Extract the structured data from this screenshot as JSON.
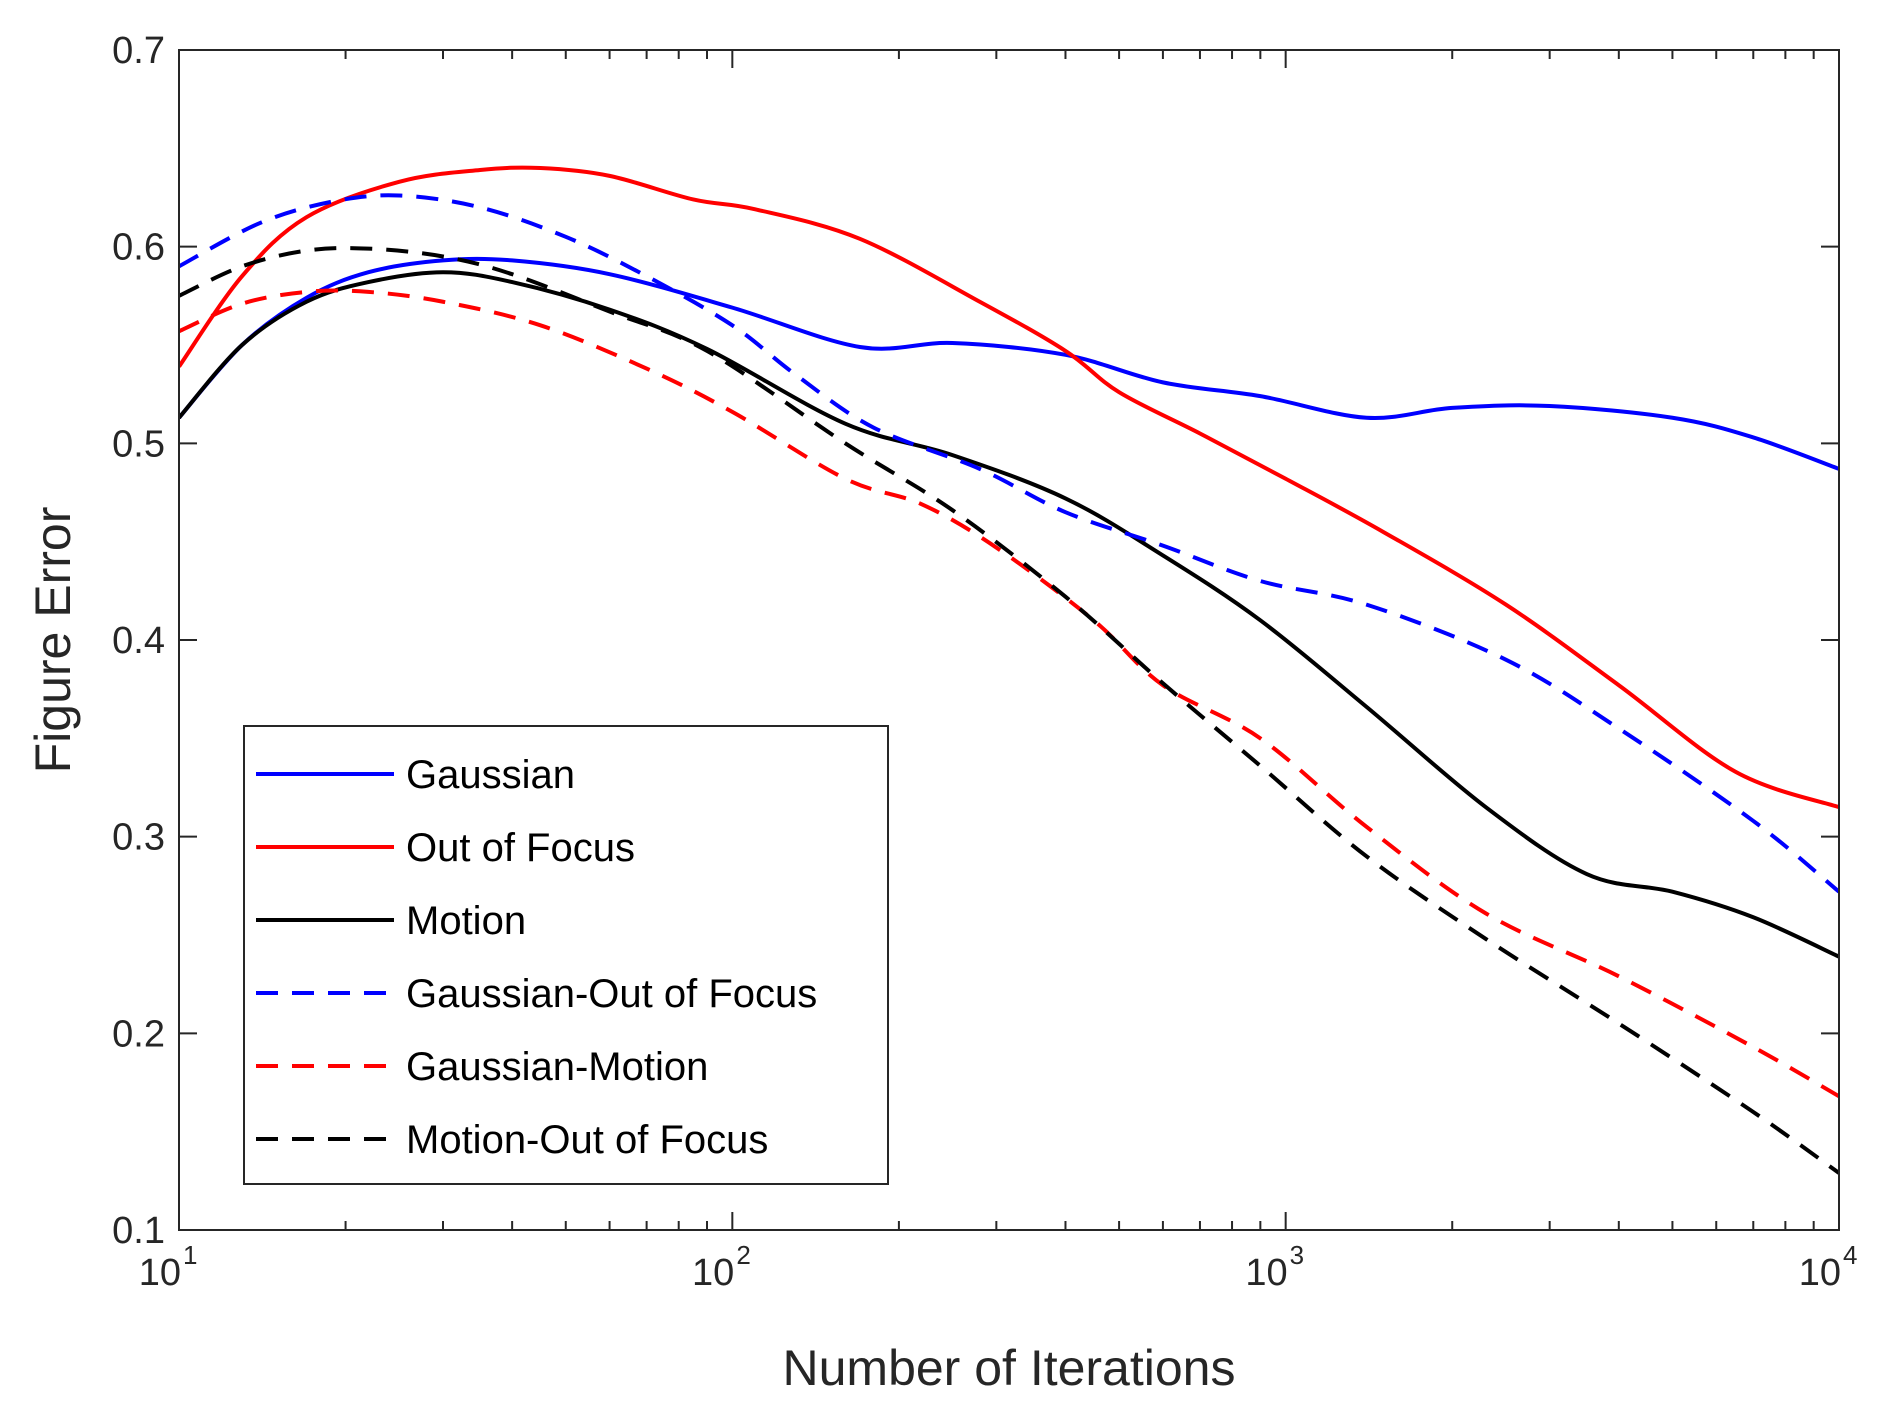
{
  "chart_data": {
    "type": "line",
    "title": "",
    "xlabel": "Number of Iterations",
    "ylabel": "Figure Error",
    "xscale": "log",
    "xlim": [
      10,
      10000
    ],
    "ylim": [
      0.1,
      0.7
    ],
    "x_ticks": [
      {
        "base": "10",
        "exp": "1",
        "value": 10
      },
      {
        "base": "10",
        "exp": "2",
        "value": 100
      },
      {
        "base": "10",
        "exp": "3",
        "value": 1000
      },
      {
        "base": "10",
        "exp": "4",
        "value": 10000
      }
    ],
    "y_ticks": [
      {
        "label": "0.1",
        "value": 0.1
      },
      {
        "label": "0.2",
        "value": 0.2
      },
      {
        "label": "0.3",
        "value": 0.3
      },
      {
        "label": "0.4",
        "value": 0.4
      },
      {
        "label": "0.5",
        "value": 0.5
      },
      {
        "label": "0.6",
        "value": 0.6
      },
      {
        "label": "0.7",
        "value": 0.7
      }
    ],
    "grid": false,
    "legend_position": "lower-left",
    "series": [
      {
        "name": "Gaussian",
        "color": "#0000ff",
        "dash": "solid",
        "points": [
          [
            10,
            0.513
          ],
          [
            13,
            0.55
          ],
          [
            17,
            0.574
          ],
          [
            22,
            0.587
          ],
          [
            30,
            0.593
          ],
          [
            40,
            0.593
          ],
          [
            60,
            0.586
          ],
          [
            100,
            0.569
          ],
          [
            170,
            0.549
          ],
          [
            250,
            0.551
          ],
          [
            400,
            0.545
          ],
          [
            600,
            0.531
          ],
          [
            900,
            0.524
          ],
          [
            1400,
            0.513
          ],
          [
            2000,
            0.518
          ],
          [
            3000,
            0.519
          ],
          [
            5000,
            0.513
          ],
          [
            7000,
            0.503
          ],
          [
            10000,
            0.487
          ]
        ]
      },
      {
        "name": "Out of Focus",
        "color": "#ff0000",
        "dash": "solid",
        "points": [
          [
            10,
            0.539
          ],
          [
            13,
            0.585
          ],
          [
            17,
            0.615
          ],
          [
            25,
            0.633
          ],
          [
            35,
            0.639
          ],
          [
            45,
            0.64
          ],
          [
            60,
            0.636
          ],
          [
            85,
            0.624
          ],
          [
            110,
            0.619
          ],
          [
            170,
            0.604
          ],
          [
            280,
            0.572
          ],
          [
            400,
            0.547
          ],
          [
            500,
            0.526
          ],
          [
            700,
            0.505
          ],
          [
            1000,
            0.482
          ],
          [
            1500,
            0.455
          ],
          [
            2500,
            0.418
          ],
          [
            4000,
            0.377
          ],
          [
            6500,
            0.333
          ],
          [
            10000,
            0.315
          ]
        ]
      },
      {
        "name": "Motion",
        "color": "#000000",
        "dash": "solid",
        "points": [
          [
            10,
            0.513
          ],
          [
            13,
            0.55
          ],
          [
            17,
            0.572
          ],
          [
            22,
            0.582
          ],
          [
            30,
            0.587
          ],
          [
            40,
            0.582
          ],
          [
            60,
            0.568
          ],
          [
            90,
            0.548
          ],
          [
            160,
            0.51
          ],
          [
            250,
            0.494
          ],
          [
            400,
            0.472
          ],
          [
            600,
            0.443
          ],
          [
            900,
            0.41
          ],
          [
            1400,
            0.366
          ],
          [
            2300,
            0.315
          ],
          [
            3500,
            0.281
          ],
          [
            5000,
            0.272
          ],
          [
            7000,
            0.259
          ],
          [
            10000,
            0.239
          ]
        ]
      },
      {
        "name": "Gaussian-Out of Focus",
        "color": "#0000ff",
        "dash": "dashed",
        "points": [
          [
            10,
            0.59
          ],
          [
            14,
            0.612
          ],
          [
            19,
            0.623
          ],
          [
            25,
            0.626
          ],
          [
            35,
            0.62
          ],
          [
            50,
            0.605
          ],
          [
            70,
            0.585
          ],
          [
            100,
            0.56
          ],
          [
            130,
            0.535
          ],
          [
            180,
            0.508
          ],
          [
            280,
            0.487
          ],
          [
            400,
            0.465
          ],
          [
            600,
            0.448
          ],
          [
            900,
            0.43
          ],
          [
            1400,
            0.418
          ],
          [
            2500,
            0.39
          ],
          [
            4000,
            0.355
          ],
          [
            7000,
            0.308
          ],
          [
            10000,
            0.272
          ]
        ]
      },
      {
        "name": "Gaussian-Motion",
        "color": "#ff0000",
        "dash": "dashed",
        "points": [
          [
            10,
            0.557
          ],
          [
            13,
            0.571
          ],
          [
            17,
            0.577
          ],
          [
            22,
            0.577
          ],
          [
            30,
            0.572
          ],
          [
            45,
            0.56
          ],
          [
            70,
            0.538
          ],
          [
            100,
            0.516
          ],
          [
            160,
            0.482
          ],
          [
            220,
            0.469
          ],
          [
            300,
            0.447
          ],
          [
            450,
            0.41
          ],
          [
            600,
            0.377
          ],
          [
            900,
            0.35
          ],
          [
            1400,
            0.305
          ],
          [
            2300,
            0.261
          ],
          [
            4000,
            0.229
          ],
          [
            7000,
            0.193
          ],
          [
            10000,
            0.168
          ]
        ]
      },
      {
        "name": "Motion-Out of Focus",
        "color": "#000000",
        "dash": "dashed",
        "points": [
          [
            10,
            0.575
          ],
          [
            13,
            0.59
          ],
          [
            17,
            0.598
          ],
          [
            22,
            0.599
          ],
          [
            30,
            0.595
          ],
          [
            40,
            0.586
          ],
          [
            60,
            0.567
          ],
          [
            90,
            0.547
          ],
          [
            160,
            0.5
          ],
          [
            250,
            0.466
          ],
          [
            400,
            0.422
          ],
          [
            600,
            0.378
          ],
          [
            900,
            0.336
          ],
          [
            1400,
            0.29
          ],
          [
            2300,
            0.248
          ],
          [
            4000,
            0.205
          ],
          [
            7000,
            0.16
          ],
          [
            10000,
            0.129
          ]
        ]
      }
    ]
  }
}
